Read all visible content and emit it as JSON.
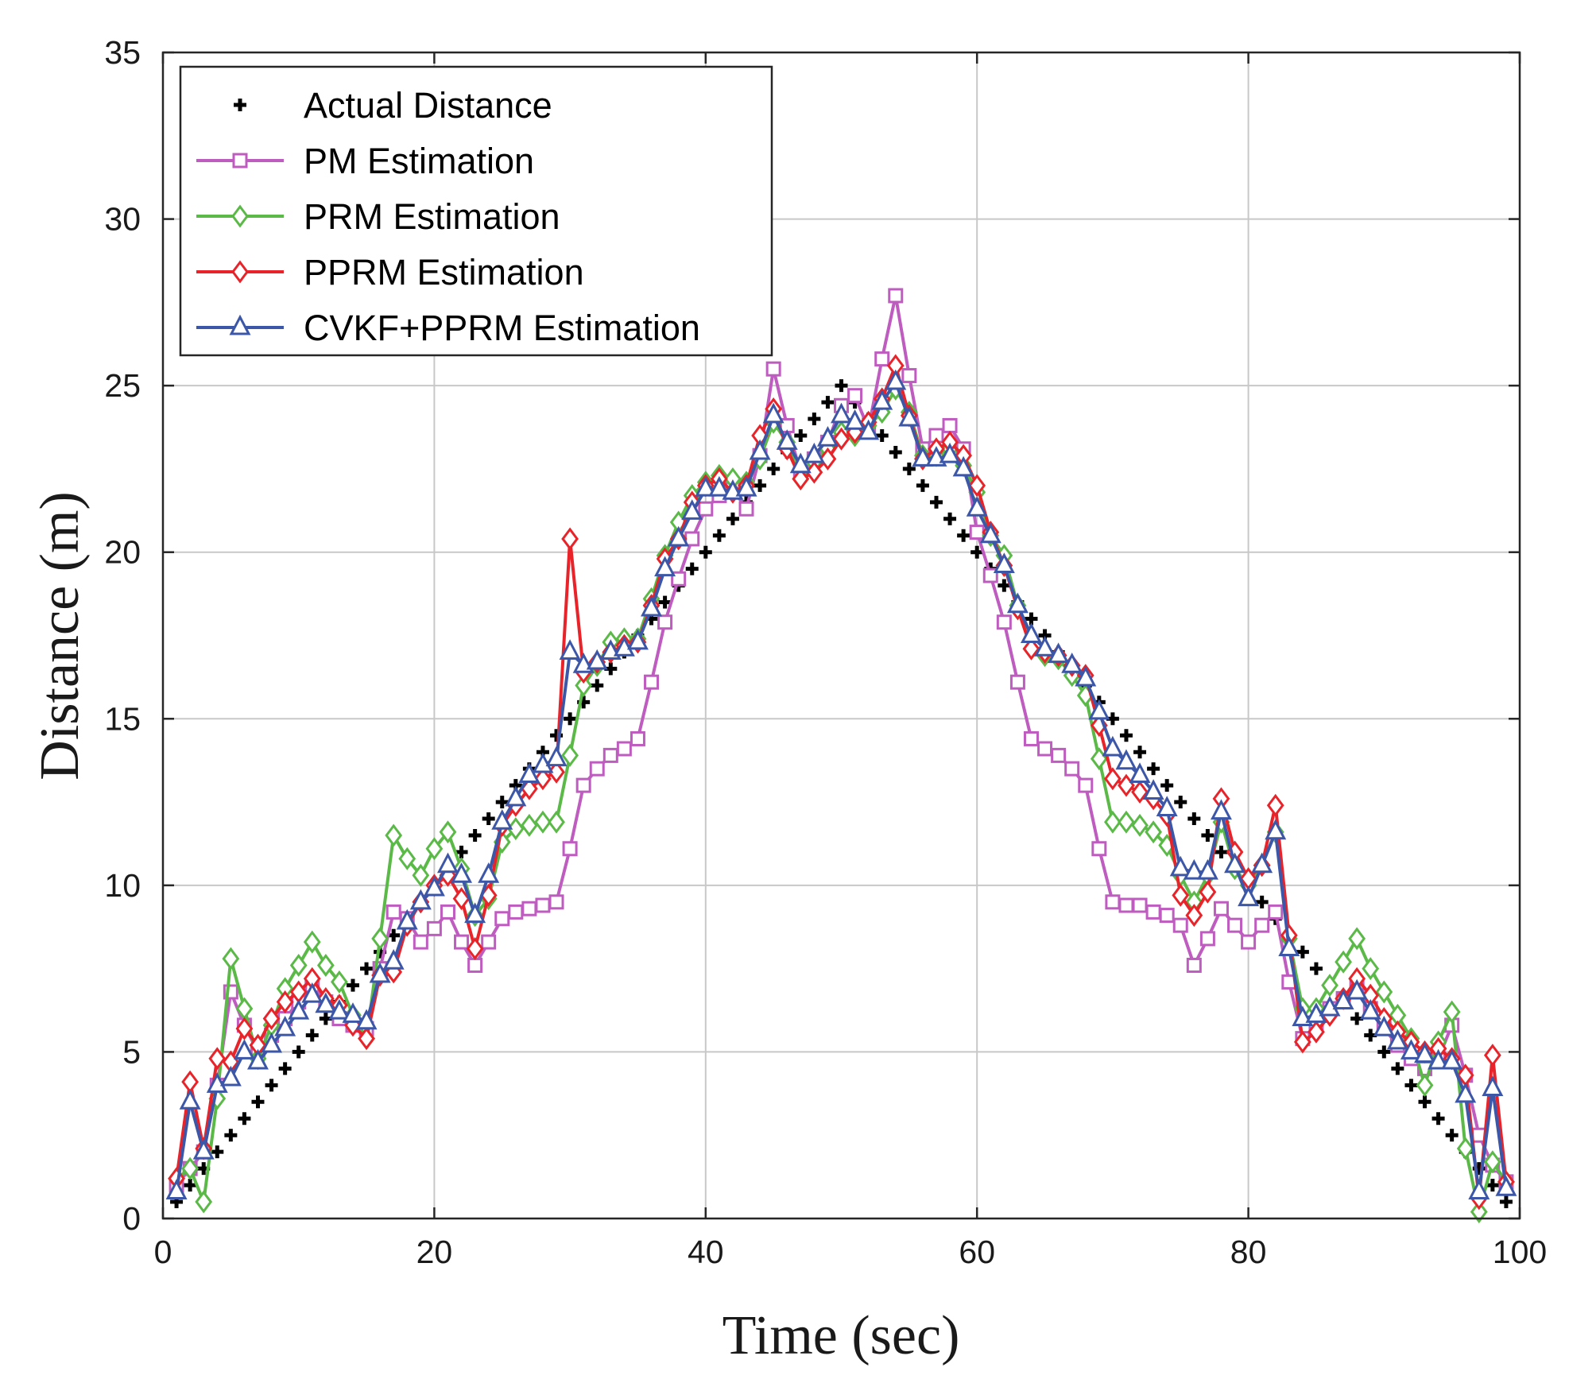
{
  "chart_data": {
    "type": "line",
    "title": "",
    "xlabel": "Time (sec)",
    "ylabel": "Distance (m)",
    "xlim": [
      0,
      100
    ],
    "ylim": [
      0,
      35
    ],
    "xticks": [
      0,
      20,
      40,
      60,
      80,
      100
    ],
    "yticks": [
      0,
      5,
      10,
      15,
      20,
      25,
      30,
      35
    ],
    "grid": true,
    "legend_position": "top-left",
    "x": [
      1,
      2,
      3,
      4,
      5,
      6,
      7,
      8,
      9,
      10,
      11,
      12,
      13,
      14,
      15,
      16,
      17,
      18,
      19,
      20,
      21,
      22,
      23,
      24,
      25,
      26,
      27,
      28,
      29,
      30,
      31,
      32,
      33,
      34,
      35,
      36,
      37,
      38,
      39,
      40,
      41,
      42,
      43,
      44,
      45,
      46,
      47,
      48,
      49,
      50,
      51,
      52,
      53,
      54,
      55,
      56,
      57,
      58,
      59,
      60,
      61,
      62,
      63,
      64,
      65,
      66,
      67,
      68,
      69,
      70,
      71,
      72,
      73,
      74,
      75,
      76,
      77,
      78,
      79,
      80,
      81,
      82,
      83,
      84,
      85,
      86,
      87,
      88,
      89,
      90,
      91,
      92,
      93,
      94,
      95,
      96,
      97,
      98,
      99
    ],
    "series": [
      {
        "name": "Actual Distance",
        "color": "#000000",
        "marker": "plus",
        "line": false,
        "values": [
          0.5,
          1,
          1.5,
          2,
          2.5,
          3,
          3.5,
          4,
          4.5,
          5,
          5.5,
          6,
          6.5,
          7,
          7.5,
          8,
          8.5,
          9,
          9.5,
          10,
          10.5,
          11,
          11.5,
          12,
          12.5,
          13,
          13.5,
          14,
          14.5,
          15,
          15.5,
          16,
          16.5,
          17,
          17.5,
          18,
          18.5,
          19,
          19.5,
          20,
          20.5,
          21,
          21.5,
          22,
          22.5,
          23,
          23.5,
          24,
          24.5,
          25,
          24.5,
          24,
          23.5,
          23,
          22.5,
          22,
          21.5,
          21,
          20.5,
          20,
          19.5,
          19,
          18.5,
          18,
          17.5,
          17,
          16.5,
          16,
          15.5,
          15,
          14.5,
          14,
          13.5,
          13,
          12.5,
          12,
          11.5,
          11,
          10.5,
          10,
          9.5,
          9,
          8.5,
          8,
          7.5,
          7,
          6.5,
          6,
          5.5,
          5,
          4.5,
          4,
          3.5,
          3,
          2.5,
          2,
          1.5,
          1,
          0.5
        ]
      },
      {
        "name": "PM Estimation",
        "color": "#bf5cbf",
        "marker": "square",
        "line": true,
        "values": [
          1,
          1.5,
          2,
          4,
          6.8,
          5.8,
          5,
          5.5,
          6,
          6.5,
          7,
          6.5,
          6,
          5.8,
          5.7,
          7.5,
          9.2,
          9,
          8.3,
          8.7,
          9.2,
          8.3,
          7.6,
          8.3,
          9,
          9.2,
          9.3,
          9.4,
          9.5,
          11.1,
          13,
          13.5,
          13.9,
          14.1,
          14.4,
          16.1,
          17.9,
          19.2,
          20.4,
          21.3,
          21.7,
          21.9,
          21.3,
          22.9,
          25.5,
          23.8,
          22.4,
          22.8,
          23.3,
          24.4,
          24.7,
          23.7,
          25.8,
          27.7,
          25.3,
          23.1,
          23.5,
          23.8,
          23.1,
          20.6,
          19.3,
          17.9,
          16.1,
          14.4,
          14.1,
          13.9,
          13.5,
          13,
          11.1,
          9.5,
          9.4,
          9.4,
          9.2,
          9.1,
          8.8,
          7.6,
          8.4,
          9.3,
          8.8,
          8.3,
          8.8,
          9.2,
          7.1,
          5.4,
          5.8,
          6.3,
          6.6,
          7,
          6.3,
          5.7,
          5.2,
          4.8,
          4.5,
          4.8,
          5.8,
          4.3,
          2.5,
          1.6,
          1.1
        ]
      },
      {
        "name": "PRM Estimation",
        "color": "#5ab947",
        "marker": "diamond",
        "line": true,
        "values": [
          1.2,
          1.5,
          0.5,
          3.6,
          7.8,
          6.3,
          4.8,
          5.8,
          6.9,
          7.6,
          8.3,
          7.6,
          7.1,
          6.1,
          5.4,
          8.4,
          11.5,
          10.8,
          10.3,
          11.1,
          11.6,
          10.5,
          9.1,
          9.6,
          11.3,
          11.7,
          11.8,
          11.9,
          11.9,
          13.9,
          16,
          16.6,
          17.3,
          17.4,
          17.4,
          18.6,
          19.9,
          20.9,
          21.7,
          22.1,
          22.3,
          22.2,
          22.1,
          22.8,
          23.9,
          23.3,
          22.2,
          22.7,
          23.1,
          23.6,
          23.5,
          23.8,
          24.2,
          24.9,
          24.2,
          22.9,
          22.9,
          23.1,
          22.6,
          21.8,
          20.5,
          19.9,
          18.4,
          17.1,
          16.9,
          16.8,
          16.3,
          15.7,
          13.8,
          11.9,
          11.9,
          11.8,
          11.6,
          11.2,
          10.3,
          9.5,
          10.3,
          11.9,
          10.5,
          10,
          10.6,
          11.6,
          8.4,
          6.3,
          6.3,
          7,
          7.7,
          8.4,
          7.5,
          6.8,
          6.1,
          5.4,
          4,
          5.3,
          6.2,
          2.1,
          0.2,
          1.7,
          1.1
        ]
      },
      {
        "name": "PPRM Estimation",
        "color": "#e8242a",
        "marker": "diamond",
        "line": true,
        "values": [
          1.2,
          4.1,
          2.1,
          4.8,
          4.7,
          5.7,
          5.2,
          6,
          6.5,
          6.8,
          7.2,
          6.6,
          6.4,
          5.8,
          5.4,
          7.3,
          7.4,
          8.8,
          9.5,
          10,
          10.3,
          9.6,
          8.1,
          9.7,
          11.8,
          12.4,
          12.9,
          13.2,
          13.4,
          20.4,
          16.4,
          16.7,
          17,
          17.2,
          17.3,
          18.4,
          19.8,
          20.4,
          21.5,
          22,
          22.2,
          21.8,
          22,
          23.5,
          24.3,
          23.1,
          22.2,
          22.4,
          22.8,
          23.4,
          23.6,
          23.9,
          24.6,
          25.6,
          24.1,
          22.8,
          23.1,
          23.3,
          22.9,
          22,
          20.6,
          19.6,
          18.3,
          17.1,
          17,
          16.9,
          16.6,
          16.3,
          14.8,
          13.2,
          13,
          12.8,
          12.6,
          12.1,
          9.7,
          9.1,
          9.8,
          12.6,
          11,
          10.2,
          10.6,
          12.4,
          8.5,
          5.3,
          5.6,
          6.1,
          6.6,
          7.2,
          6.7,
          6,
          5.6,
          5.3,
          5,
          5.1,
          4.8,
          4.3,
          0.6,
          4.9,
          1.1
        ]
      },
      {
        "name": "CVKF+PPRM Estimation",
        "color": "#3d57a8",
        "marker": "triangle",
        "line": true,
        "values": [
          0.8,
          3.5,
          2,
          4,
          4.2,
          5,
          4.7,
          5.2,
          5.7,
          6.2,
          6.7,
          6.4,
          6.2,
          6.1,
          5.9,
          7.3,
          7.7,
          8.9,
          9.5,
          9.9,
          10.6,
          10.3,
          9.1,
          10.3,
          11.9,
          12.6,
          13.3,
          13.6,
          13.8,
          17,
          16.6,
          16.7,
          17,
          17.1,
          17.3,
          18.3,
          19.5,
          20.4,
          21.2,
          21.9,
          21.9,
          21.8,
          21.9,
          23,
          24.1,
          23.3,
          22.6,
          22.9,
          23.4,
          24.1,
          23.9,
          23.6,
          24.5,
          25.1,
          24,
          22.8,
          22.8,
          22.9,
          22.5,
          21.3,
          20.5,
          19.6,
          18.4,
          17.5,
          17.1,
          16.9,
          16.6,
          16.2,
          15.2,
          14.1,
          13.7,
          13.3,
          12.8,
          12.3,
          10.5,
          10.4,
          10.4,
          12.2,
          10.6,
          9.6,
          10.6,
          11.6,
          8.1,
          6,
          6.1,
          6.3,
          6.5,
          6.8,
          6.2,
          5.7,
          5.3,
          5,
          4.9,
          4.7,
          4.7,
          3.7,
          0.8,
          3.9,
          0.9
        ]
      }
    ]
  }
}
